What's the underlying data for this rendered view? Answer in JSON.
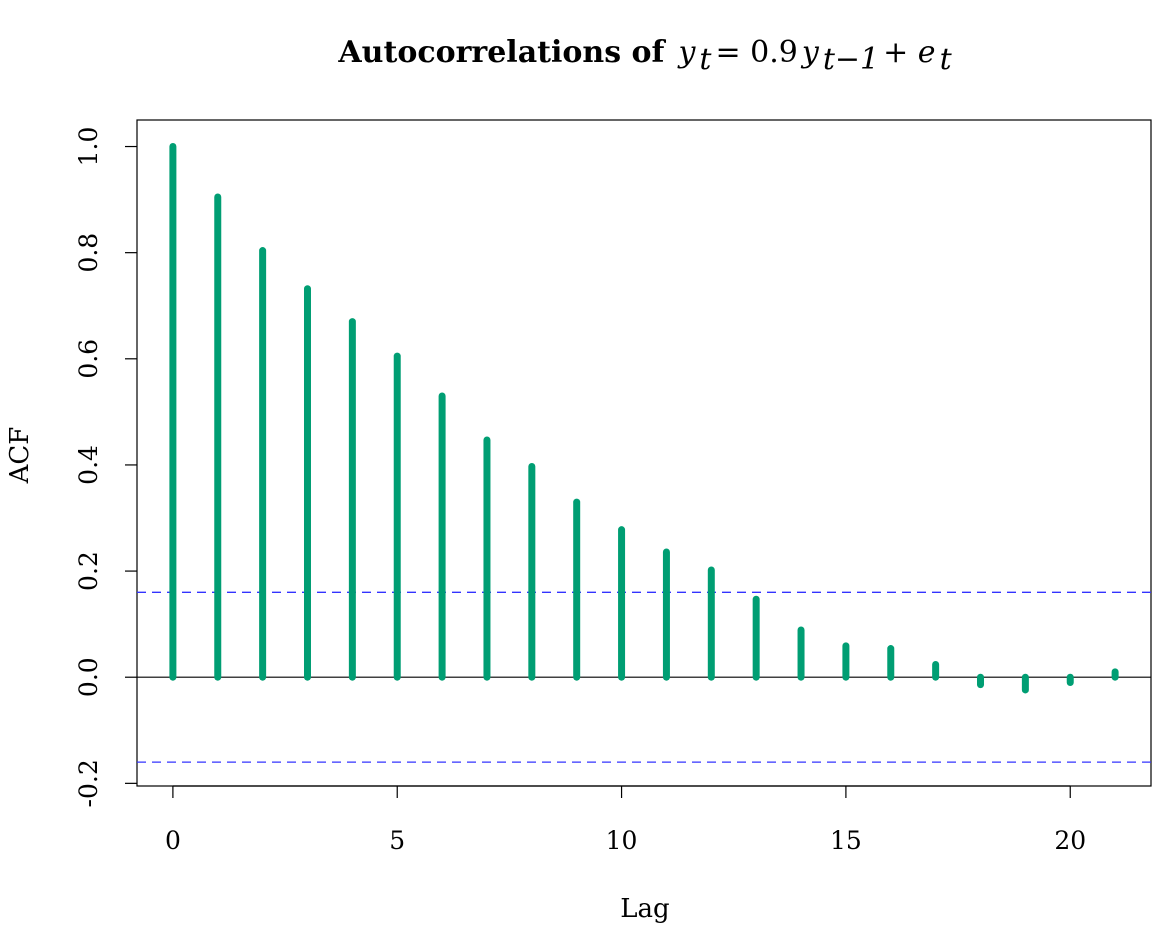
{
  "chart_data": {
    "type": "bar",
    "title_bold": "Autocorrelations of",
    "title_math": {
      "y": "y",
      "t": "t",
      "eq": " = 0.9",
      "y2": "y",
      "sub": "t−1",
      "plus": " + ",
      "e": "e",
      "t2": "t"
    },
    "xlabel": "Lag",
    "ylabel": "ACF",
    "xlim": [
      -0.8,
      21.8
    ],
    "ylim": [
      -0.205,
      1.05
    ],
    "xticks": [
      0,
      5,
      10,
      15,
      20
    ],
    "xtick_labels": [
      "0",
      "5",
      "10",
      "15",
      "20"
    ],
    "yticks": [
      -0.2,
      0.0,
      0.2,
      0.4,
      0.6,
      0.8,
      1.0
    ],
    "ytick_labels": [
      "-0.2",
      "0.0",
      "0.2",
      "0.4",
      "0.6",
      "0.8",
      "1.0"
    ],
    "lags": [
      0,
      1,
      2,
      3,
      4,
      5,
      6,
      7,
      8,
      9,
      10,
      11,
      12,
      13,
      14,
      15,
      16,
      17,
      18,
      19,
      20,
      21
    ],
    "values": [
      1.0,
      0.905,
      0.804,
      0.732,
      0.67,
      0.605,
      0.53,
      0.447,
      0.397,
      0.33,
      0.278,
      0.236,
      0.202,
      0.147,
      0.089,
      0.059,
      0.054,
      0.024,
      -0.014,
      -0.024,
      -0.01,
      0.01
    ],
    "confidence_bound": 0.16,
    "grid": false
  },
  "colors": {
    "bars": "#009E73",
    "confidence": "#3333FF",
    "axis": "#000000"
  }
}
